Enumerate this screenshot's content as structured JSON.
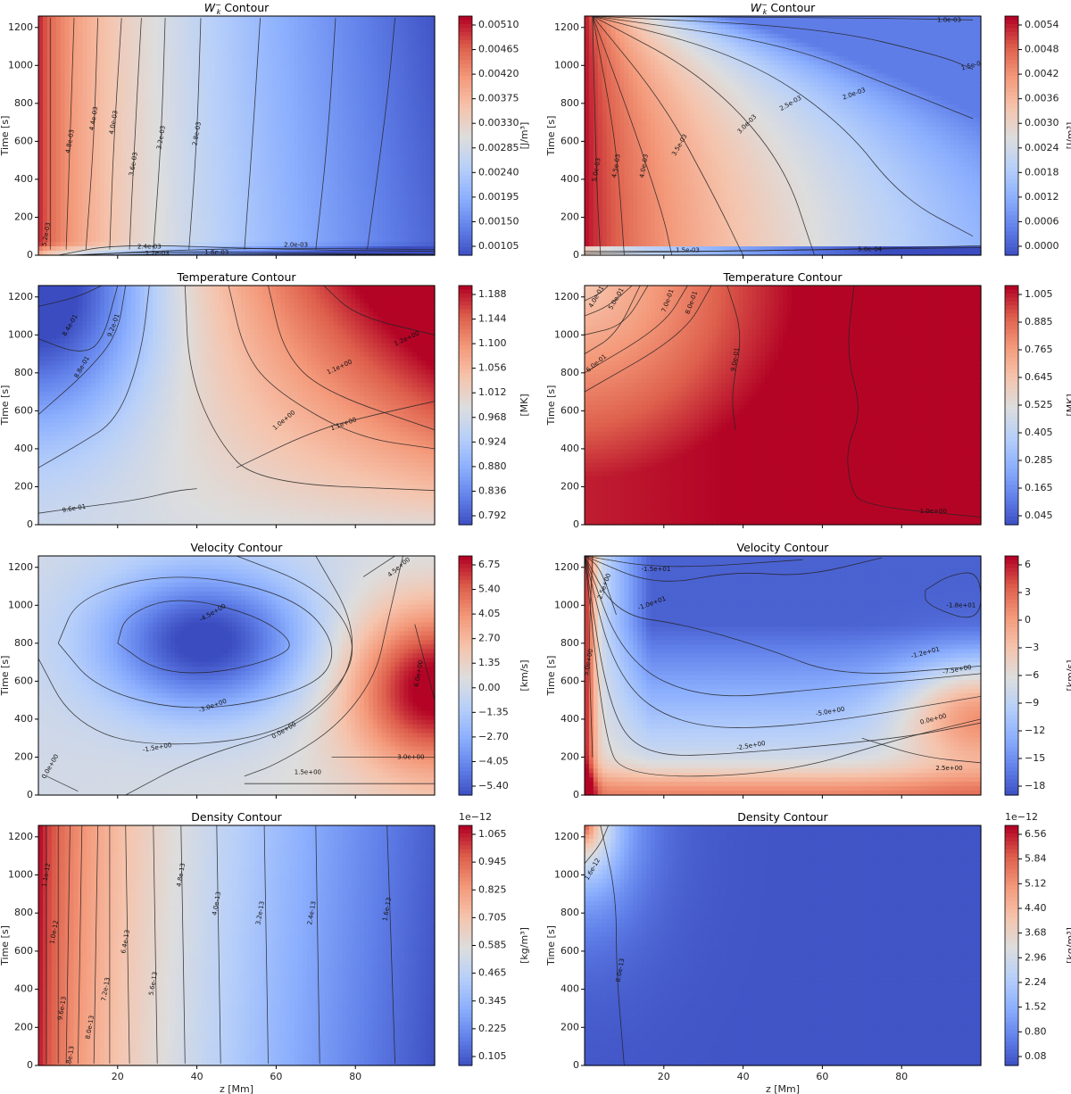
{
  "figure": {
    "xlabel": "z [Mm]",
    "ylabel": "Time [s]",
    "x_ticks": [
      20,
      40,
      60,
      80
    ],
    "y_ticks": [
      0,
      200,
      400,
      600,
      800,
      1000,
      1200
    ],
    "xlim": [
      0,
      100
    ],
    "ylim": [
      0,
      1260
    ]
  },
  "chart_data": [
    {
      "type": "heatmap",
      "id": "wk_left",
      "title": "Wk⁻ Contour",
      "title_sym": "W",
      "title_sub": "k",
      "title_sup": "−",
      "title_rest": " Contour",
      "units": "[J/m³]",
      "colorbar_ticks": [
        "0.00510",
        "0.00465",
        "0.00420",
        "0.00375",
        "0.00330",
        "0.00285",
        "0.00240",
        "0.00195",
        "0.00150",
        "0.00105"
      ],
      "contour_labels": [
        "4.8e-03",
        "4.4e-03",
        "4.0e-03",
        "3.6e-03",
        "3.2e-03",
        "2.8e-03",
        "2.4e-03",
        "2.0e-03",
        "1.6e-03",
        "1.2e-03",
        "5.2e-03"
      ],
      "offset_text": ""
    },
    {
      "type": "heatmap",
      "id": "wk_right",
      "title": "Wk⁻ Contour",
      "title_sym": "W",
      "title_sub": "k",
      "title_sup": "−",
      "title_rest": " Contour",
      "units": "[J/m³]",
      "colorbar_ticks": [
        "0.0054",
        "0.0048",
        "0.0042",
        "0.0036",
        "0.0030",
        "0.0024",
        "0.0018",
        "0.0012",
        "0.0006",
        "0.0000"
      ],
      "contour_labels": [
        "5.0e-03",
        "4.5e-03",
        "4.0e-03",
        "3.5e-03",
        "3.0e-03",
        "2.5e-03",
        "2.0e-03",
        "1.5e-03",
        "1.0e-03",
        "5.0e-04",
        "1.5e-03"
      ],
      "offset_text": ""
    },
    {
      "type": "heatmap",
      "id": "temp_left",
      "title": "Temperature Contour",
      "units": "[MK]",
      "colorbar_ticks": [
        "1.188",
        "1.144",
        "1.100",
        "1.056",
        "1.012",
        "0.968",
        "0.924",
        "0.880",
        "0.836",
        "0.792"
      ],
      "contour_labels": [
        "8.4e-01",
        "8.8e-01",
        "9.2e-01",
        "9.6e-01",
        "1.0e+00",
        "1.1e+00",
        "1.1e+00",
        "1.2e+00",
        "1.0e+00"
      ],
      "offset_text": ""
    },
    {
      "type": "heatmap",
      "id": "temp_right",
      "title": "Temperature Contour",
      "units": "[MK]",
      "colorbar_ticks": [
        "1.005",
        "0.885",
        "0.765",
        "0.645",
        "0.525",
        "0.405",
        "0.285",
        "0.165",
        "0.045"
      ],
      "contour_labels": [
        "4.0e-01",
        "5.0e-01",
        "7.0e-01",
        "8.0e-01",
        "6.0e-01",
        "9.0e-01",
        "1.0e+00"
      ],
      "offset_text": ""
    },
    {
      "type": "heatmap",
      "id": "vel_left",
      "title": "Velocity Contour",
      "units": "[km/s]",
      "colorbar_ticks": [
        "6.75",
        "5.40",
        "4.05",
        "2.70",
        "1.35",
        "0.00",
        "−1.35",
        "−2.70",
        "−4.05",
        "−5.40"
      ],
      "contour_labels": [
        "-4.5e+00",
        "-3.0e+00",
        "-1.5e+00",
        "0.0e+00",
        "1.5e+00",
        "3.0e+00",
        "4.5e+00",
        "6.0e+00",
        "0.0e+00"
      ],
      "offset_text": ""
    },
    {
      "type": "heatmap",
      "id": "vel_right",
      "title": "Velocity Contour",
      "units": "[km/s]",
      "colorbar_ticks": [
        "6",
        "3",
        "0",
        "−3",
        "−6",
        "−9",
        "−12",
        "−15",
        "−18"
      ],
      "contour_labels": [
        "-1.5e+01",
        "-1.0e+01",
        "-1.8e+01",
        "-1.2e+01",
        "-7.5e+00",
        "-5.0e+00",
        "-2.5e+00",
        "0.0e+00",
        "2.5e+00",
        "2.5e+00",
        "5.0e+00"
      ],
      "offset_text": ""
    },
    {
      "type": "heatmap",
      "id": "dens_left",
      "title": "Density Contour",
      "units": "[kg/m³]",
      "colorbar_ticks": [
        "1.065",
        "0.945",
        "0.825",
        "0.705",
        "0.585",
        "0.465",
        "0.345",
        "0.225",
        "0.105"
      ],
      "contour_labels": [
        "1.0e-12",
        "9.6e-13",
        "8.8e-13",
        "8.0e-13",
        "7.2e-13",
        "6.4e-13",
        "5.6e-13",
        "4.8e-13",
        "4.0e-13",
        "3.2e-13",
        "2.4e-13",
        "1.6e-13",
        "1.1e-12"
      ],
      "offset_text": "1e−12"
    },
    {
      "type": "heatmap",
      "id": "dens_right",
      "title": "Density Contour",
      "units": "[kg/m³]",
      "colorbar_ticks": [
        "6.56",
        "5.84",
        "5.12",
        "4.40",
        "3.68",
        "2.96",
        "2.24",
        "1.52",
        "0.80",
        "0.08"
      ],
      "contour_labels": [
        "1.6e-12",
        "8.0e-13"
      ],
      "offset_text": "1e−12"
    }
  ],
  "colors": {
    "cmap_low": "#3b4cc0",
    "cmap_mid": "#dddddd",
    "cmap_high": "#b40426",
    "contour_line": "#222222"
  }
}
